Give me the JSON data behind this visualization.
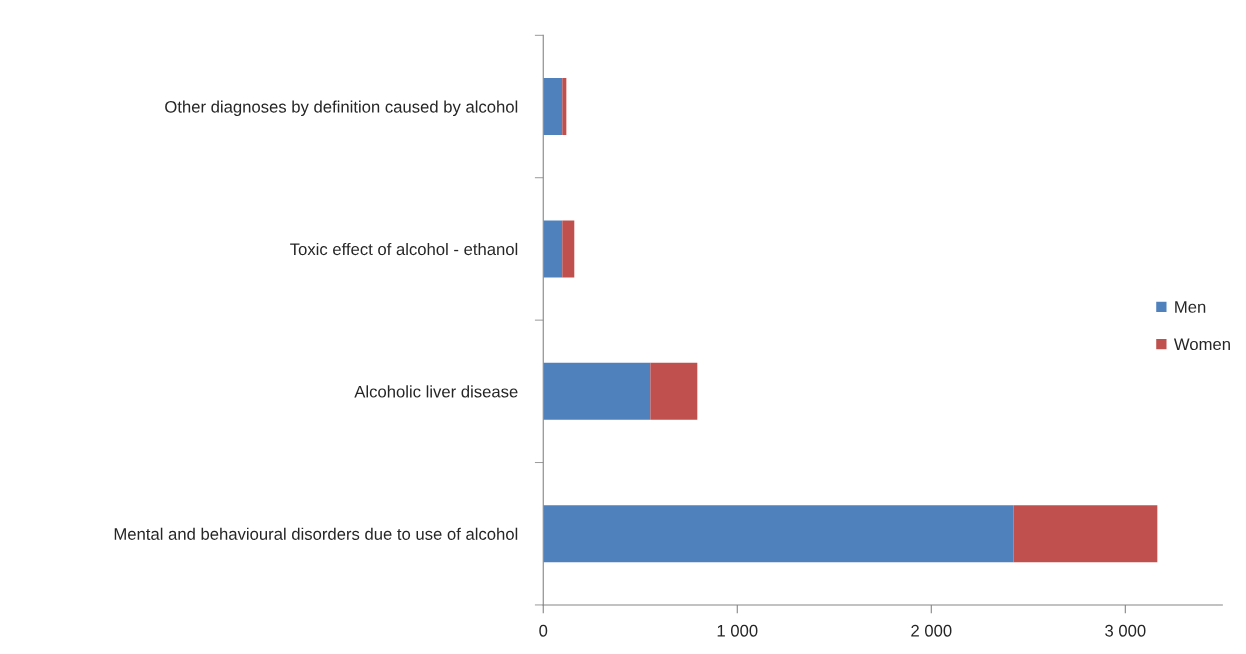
{
  "chart_data": {
    "type": "bar",
    "orientation": "horizontal",
    "stacked": true,
    "categories": [
      "Other diagnoses by definition caused by alcohol",
      "Toxic effect of alcohol - ethanol",
      "Alcoholic liver disease",
      "Mental and behavioural disorders due to use of alcohol"
    ],
    "series": [
      {
        "name": "Men",
        "color": "#4f81bd",
        "values": [
          98,
          98,
          552,
          2423
        ]
      },
      {
        "name": "Women",
        "color": "#c0504d",
        "values": [
          21,
          62,
          242,
          742
        ]
      }
    ],
    "xlim": [
      0,
      3500
    ],
    "xticks": [
      {
        "value": 0,
        "label": "0"
      },
      {
        "value": 1000,
        "label": "1 000"
      },
      {
        "value": 2000,
        "label": "2 000"
      },
      {
        "value": 3000,
        "label": "3 000"
      }
    ],
    "grid": false,
    "legend": "right"
  }
}
